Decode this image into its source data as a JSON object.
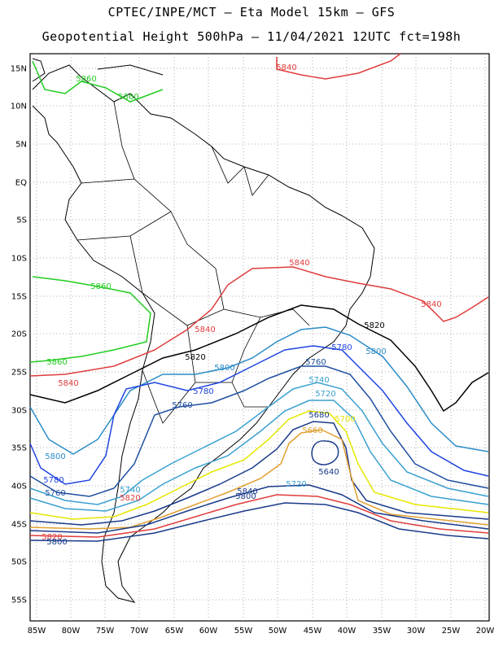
{
  "title_line1": "CPTEC/INPE/MCT –  Eta Model 15km – GFS",
  "title_line2": "Geopotential Height 500hPa – 11/04/2021 12UTC fct=198h",
  "lat_labels": [
    "15N",
    "10N",
    "5N",
    "EQ",
    "5S",
    "10S",
    "15S",
    "20S",
    "25S",
    "30S",
    "35S",
    "40S",
    "45S",
    "50S",
    "55S"
  ],
  "lon_labels": [
    "85W",
    "80W",
    "75W",
    "70W",
    "65W",
    "60W",
    "55W",
    "50W",
    "45W",
    "40W",
    "35W",
    "30W",
    "25W",
    "20W"
  ],
  "contour_labels": [
    {
      "text": "5840",
      "color": "#e03c3c"
    },
    {
      "text": "5860",
      "color": "#22cc22"
    },
    {
      "text": "5860",
      "color": "#22cc22"
    },
    {
      "text": "5840",
      "color": "#e03c3c"
    },
    {
      "text": "5860",
      "color": "#22cc22"
    },
    {
      "text": "5840",
      "color": "#e03c3c"
    },
    {
      "text": "5840",
      "color": "#e03c3c"
    },
    {
      "text": "5820",
      "color": "#000000"
    },
    {
      "text": "5820",
      "color": "#000000"
    },
    {
      "text": "5780",
      "color": "#1f44e0"
    },
    {
      "text": "5800",
      "color": "#2a8cc8"
    },
    {
      "text": "5760",
      "color": "#1f4fa0"
    },
    {
      "text": "5860",
      "color": "#22cc22"
    },
    {
      "text": "5840",
      "color": "#e03c3c"
    },
    {
      "text": "5800",
      "color": "#2a8cc8"
    },
    {
      "text": "5780",
      "color": "#1f44e0"
    },
    {
      "text": "5740",
      "color": "#3aa0d0"
    },
    {
      "text": "5760",
      "color": "#1f4fa0"
    },
    {
      "text": "5720",
      "color": "#3aa0d0"
    },
    {
      "text": "5700",
      "color": "#e6e600"
    },
    {
      "text": "5680",
      "color": "#1a3a8a"
    },
    {
      "text": "5660",
      "color": "#e0a030"
    },
    {
      "text": "5640",
      "color": "#1a3a8a"
    },
    {
      "text": "5800",
      "color": "#2a8cc8"
    },
    {
      "text": "5780",
      "color": "#1f44e0"
    },
    {
      "text": "5760",
      "color": "#1f4fa0"
    },
    {
      "text": "5740",
      "color": "#3aa0d0"
    },
    {
      "text": "5720",
      "color": "#3aa0d0"
    },
    {
      "text": "5840",
      "color": "#1a3a8a"
    },
    {
      "text": "5820",
      "color": "#e03c3c"
    },
    {
      "text": "5800",
      "color": "#1a3a8a"
    },
    {
      "text": "5820",
      "color": "#e03c3c"
    },
    {
      "text": "5800",
      "color": "#1a3a8a"
    }
  ]
}
